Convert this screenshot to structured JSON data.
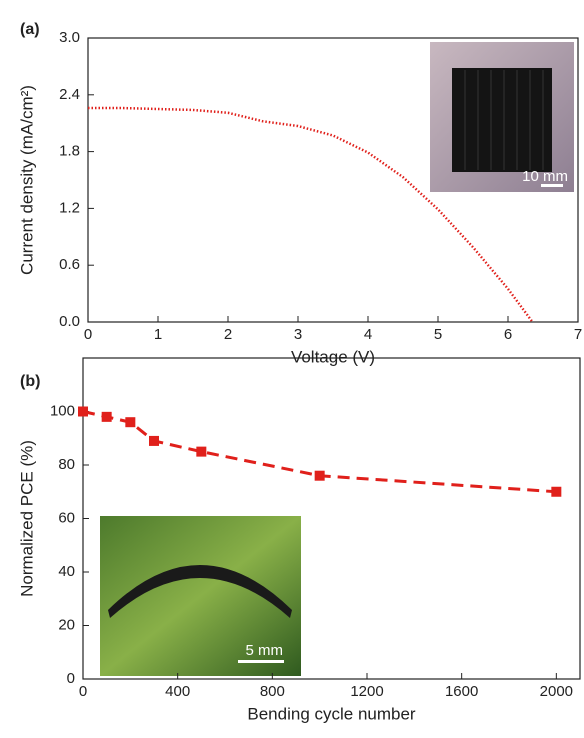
{
  "chart_data": [
    {
      "type": "line",
      "annotation": "(a)",
      "xlabel": "Voltage (V)",
      "ylabel": "Current density (mA/cm²)",
      "x": [
        0,
        0.5,
        1,
        1.5,
        2,
        2.5,
        3,
        3.5,
        4,
        4.5,
        5,
        5.5,
        6,
        6.35
      ],
      "series": [
        {
          "color": "#e0201b",
          "values": [
            2.26,
            2.26,
            2.25,
            2.24,
            2.21,
            2.12,
            2.07,
            1.97,
            1.79,
            1.53,
            1.19,
            0.79,
            0.35,
            0
          ]
        }
      ],
      "xlim": [
        0,
        7
      ],
      "xticks": [
        0,
        1,
        2,
        3,
        4,
        5,
        6,
        7
      ],
      "ylim": [
        0,
        3.0
      ],
      "yticks": [
        {
          "value": 0,
          "label": "0.0"
        },
        0.6,
        1.2,
        1.8,
        2.4,
        {
          "value": 3.0,
          "label": "3.0"
        }
      ],
      "inset_label": "10 mm"
    },
    {
      "type": "line",
      "annotation": "(b)",
      "xlabel": "Bending cycle number",
      "ylabel": "Normalized PCE (%)",
      "x": [
        0,
        100,
        200,
        300,
        500,
        1000,
        2000
      ],
      "series": [
        {
          "color": "#e0201b",
          "values": [
            100,
            98,
            96,
            89,
            85,
            76,
            70
          ]
        }
      ],
      "markers": true,
      "dashed": true,
      "xlim": [
        0,
        2100
      ],
      "xticks": [
        0,
        400,
        800,
        1200,
        1600,
        2000
      ],
      "ylim": [
        0,
        120
      ],
      "yticks": [
        0,
        20,
        40,
        60,
        80,
        100
      ],
      "inset_label": "5 mm"
    }
  ]
}
